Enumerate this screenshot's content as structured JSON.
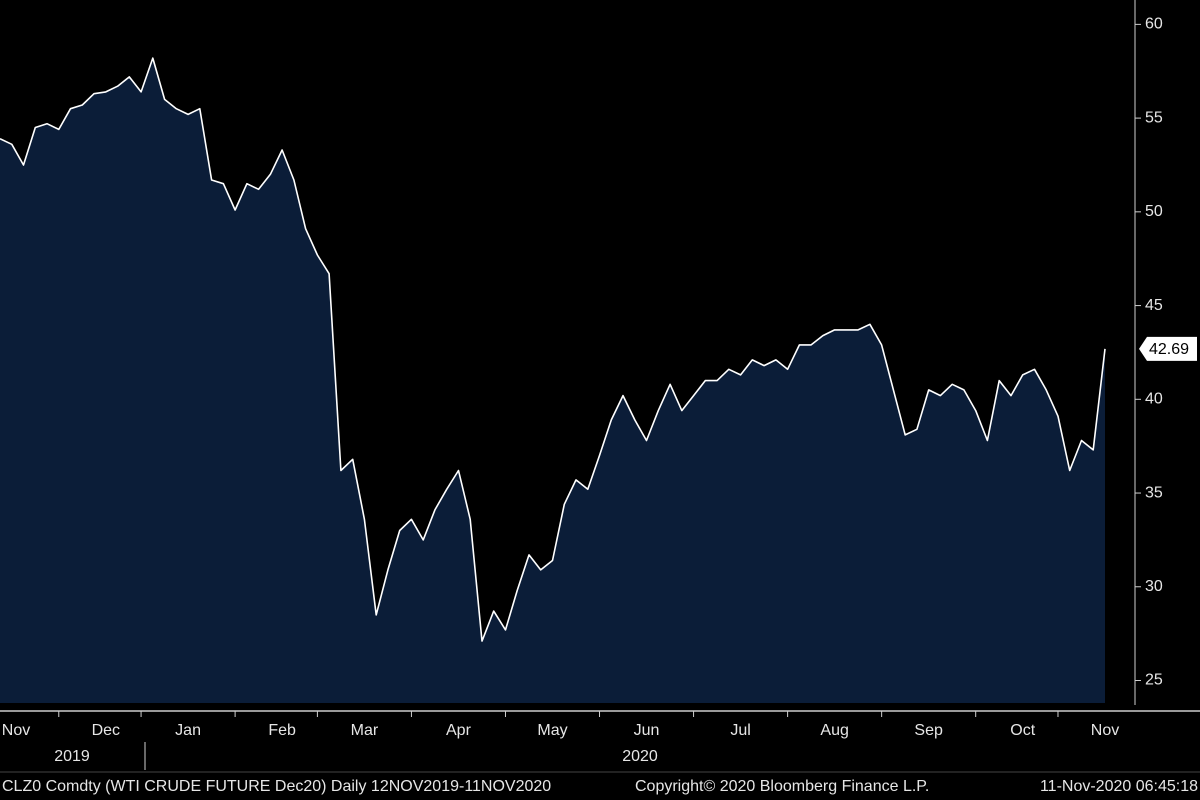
{
  "chart_data": {
    "type": "area",
    "categories": [
      null,
      "Nov",
      null,
      null,
      null,
      null,
      null,
      null,
      null,
      "Dec",
      null,
      null,
      null,
      null,
      null,
      null,
      "Jan",
      null,
      null,
      null,
      null,
      null,
      null,
      null,
      "Feb",
      null,
      null,
      null,
      null,
      null,
      null,
      "Mar",
      null,
      null,
      null,
      null,
      null,
      null,
      null,
      "Apr",
      null,
      null,
      null,
      null,
      null,
      null,
      null,
      "May",
      null,
      null,
      null,
      null,
      null,
      null,
      null,
      "Jun",
      null,
      null,
      null,
      null,
      null,
      null,
      null,
      "Jul",
      null,
      null,
      null,
      null,
      null,
      null,
      null,
      "Aug",
      null,
      null,
      null,
      null,
      null,
      null,
      null,
      "Sep",
      null,
      null,
      null,
      null,
      null,
      null,
      null,
      "Oct",
      null,
      null,
      null,
      null,
      null,
      null,
      "Nov"
    ],
    "values": [
      53.9,
      53.6,
      52.5,
      54.5,
      54.7,
      54.4,
      55.5,
      55.7,
      56.3,
      56.4,
      56.7,
      57.2,
      56.4,
      58.2,
      56.0,
      55.5,
      55.2,
      55.5,
      51.7,
      51.5,
      50.1,
      51.5,
      51.2,
      52.0,
      53.3,
      51.7,
      49.1,
      47.7,
      46.7,
      36.2,
      36.8,
      33.6,
      28.5,
      30.9,
      33.0,
      33.6,
      32.5,
      34.1,
      35.2,
      36.2,
      33.6,
      27.1,
      28.7,
      27.7,
      29.8,
      31.7,
      30.9,
      31.4,
      34.4,
      35.7,
      35.2,
      37.0,
      38.9,
      40.2,
      38.9,
      37.8,
      39.4,
      40.8,
      39.4,
      40.2,
      41.0,
      41.0,
      41.6,
      41.3,
      42.1,
      41.8,
      42.1,
      41.6,
      42.9,
      42.9,
      43.4,
      43.7,
      43.7,
      43.7,
      44.0,
      42.9,
      40.5,
      38.1,
      38.4,
      40.5,
      40.2,
      40.8,
      40.5,
      39.4,
      37.8,
      41.0,
      40.2,
      41.3,
      41.6,
      40.5,
      39.1,
      36.2,
      37.8,
      37.3,
      42.69
    ],
    "color": "#ffffff",
    "fill": "#0b1d38",
    "ylim": [
      23.8,
      61.3
    ],
    "yticks": [
      25,
      30,
      35,
      40,
      45,
      50,
      55,
      60
    ],
    "years": [
      "2019",
      "2020"
    ],
    "footer": "CLZ0 Comdty (WTI CRUDE FUTURE  Dec20)  Daily 12NOV2019-11NOV2020",
    "copyright": "Copyright© 2020 Bloomberg Finance L.P.",
    "timestamp": "11-Nov-2020 06:45:18"
  }
}
